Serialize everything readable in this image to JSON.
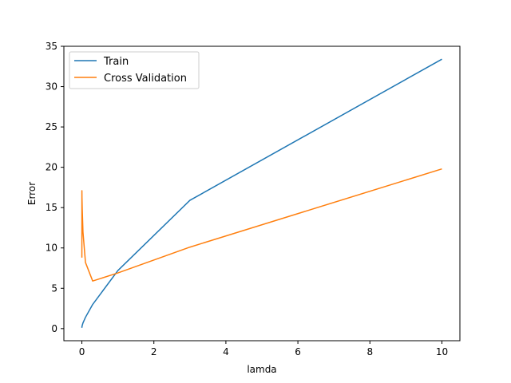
{
  "chart_data": {
    "type": "line",
    "xlabel": "lamda",
    "ylabel": "Error",
    "xlim": [
      -0.5,
      10.5
    ],
    "ylim": [
      -1.5,
      35
    ],
    "xticks": [
      0,
      2,
      4,
      6,
      8,
      10
    ],
    "yticks": [
      0,
      5,
      10,
      15,
      20,
      25,
      30,
      35
    ],
    "grid": false,
    "legend": "top-left",
    "series": [
      {
        "name": "Train",
        "color": "#1f77b4",
        "x": [
          0,
          0.001,
          0.003,
          0.01,
          0.03,
          0.1,
          0.3,
          1,
          3,
          10
        ],
        "y": [
          0.1,
          0.2,
          0.25,
          0.4,
          0.7,
          1.4,
          3.0,
          7.2,
          15.9,
          33.4
        ]
      },
      {
        "name": "Cross Validation",
        "color": "#ff7f0e",
        "x": [
          0,
          0.001,
          0.003,
          0.01,
          0.03,
          0.1,
          0.3,
          1,
          3,
          10
        ],
        "y": [
          8.8,
          17.1,
          16.2,
          14.8,
          12.0,
          8.2,
          5.9,
          6.9,
          10.1,
          19.8
        ]
      }
    ]
  }
}
